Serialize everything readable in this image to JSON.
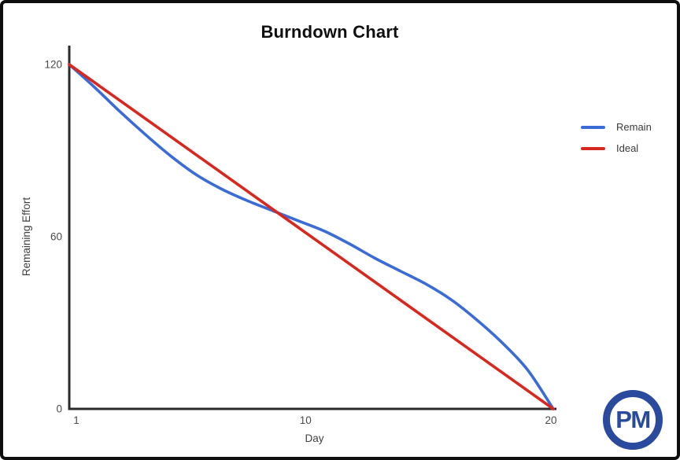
{
  "frame": {
    "background": "#ffffff",
    "border_color": "#0e0e0e"
  },
  "chart_data": {
    "type": "line",
    "title": "Burndown Chart",
    "xlabel": "Day",
    "ylabel": "Remaining Effort",
    "xlim": [
      1,
      20
    ],
    "ylim": [
      0,
      120
    ],
    "xticks": [
      1,
      10,
      20
    ],
    "yticks": [
      0,
      60,
      120
    ],
    "grid": false,
    "legend_position": "right",
    "axis_color": "#2b2b2b",
    "tick_label_color": "#4a4a4a",
    "axis_title_color": "#3f3f3f",
    "series": [
      {
        "name": "Remain",
        "color": "#3b6cd6",
        "smooth": true,
        "x": [
          1,
          2,
          3,
          4,
          5,
          6,
          7,
          8,
          9,
          10,
          11,
          12,
          13,
          14,
          15,
          16,
          17,
          18,
          19,
          20
        ],
        "values": [
          120,
          112,
          103.5,
          95.5,
          88,
          81.5,
          76.5,
          72.5,
          69,
          65.5,
          62,
          57.5,
          52.5,
          48,
          43.5,
          38,
          31,
          23,
          13.5,
          0
        ]
      },
      {
        "name": "Ideal",
        "color": "#d6281e",
        "smooth": false,
        "x": [
          1,
          20
        ],
        "values": [
          120,
          0
        ]
      }
    ]
  },
  "logo": {
    "text": "PM",
    "color": "#2a4a9d"
  }
}
